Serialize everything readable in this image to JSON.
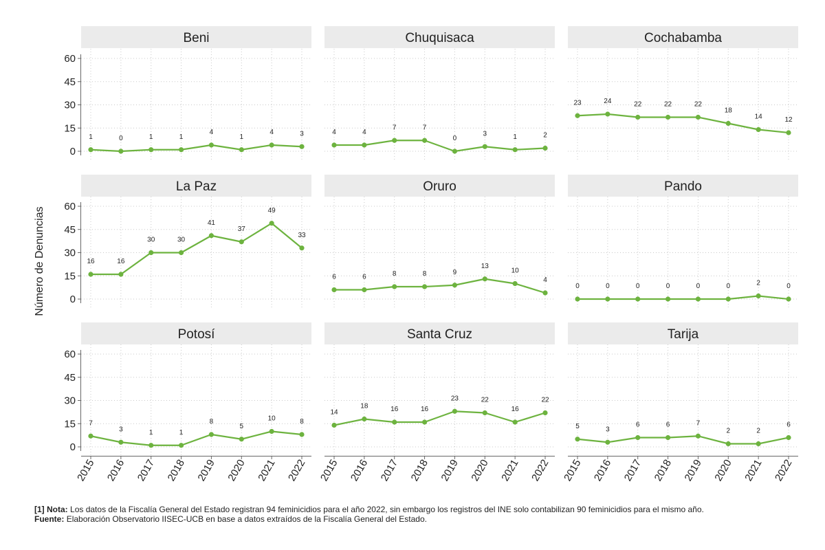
{
  "chart_data": {
    "type": "line",
    "ylabel": "Número de Denuncias",
    "ylim": [
      0,
      60
    ],
    "yticks": [
      0,
      15,
      30,
      45,
      60
    ],
    "x": [
      "2015",
      "2016",
      "2017",
      "2018",
      "2019",
      "2020",
      "2021",
      "2022"
    ],
    "grid": true,
    "line_color": "#6db33f",
    "strip_color": "#ebebeb",
    "panels": [
      {
        "title": "Beni",
        "values": [
          1,
          0,
          1,
          1,
          4,
          1,
          4,
          3
        ]
      },
      {
        "title": "Chuquisaca",
        "values": [
          4,
          4,
          7,
          7,
          0,
          3,
          1,
          2
        ]
      },
      {
        "title": "Cochabamba",
        "values": [
          23,
          24,
          22,
          22,
          22,
          18,
          14,
          12
        ]
      },
      {
        "title": "La Paz",
        "values": [
          16,
          16,
          30,
          30,
          41,
          37,
          49,
          33
        ]
      },
      {
        "title": "Oruro",
        "values": [
          6,
          6,
          8,
          8,
          9,
          13,
          10,
          4
        ]
      },
      {
        "title": "Pando",
        "values": [
          0,
          0,
          0,
          0,
          0,
          0,
          2,
          0
        ]
      },
      {
        "title": "Potosí",
        "values": [
          7,
          3,
          1,
          1,
          8,
          5,
          10,
          8
        ]
      },
      {
        "title": "Santa Cruz",
        "values": [
          14,
          18,
          16,
          16,
          23,
          22,
          16,
          22
        ]
      },
      {
        "title": "Tarija",
        "values": [
          5,
          3,
          6,
          6,
          7,
          2,
          2,
          6
        ]
      }
    ]
  },
  "notes": {
    "note_marker": "[1]",
    "note_label": "Nota:",
    "note_text": "Los datos de la Fiscalía General del Estado registran 94 feminicidios para el año 2022, sin embargo los registros del INE solo contabilizan 90 feminicidios para el mismo año.",
    "source_label": "Fuente:",
    "source_text": "Elaboración Observatorio IISEC-UCB en base a datos extraídos de la Fiscalía General del Estado."
  }
}
